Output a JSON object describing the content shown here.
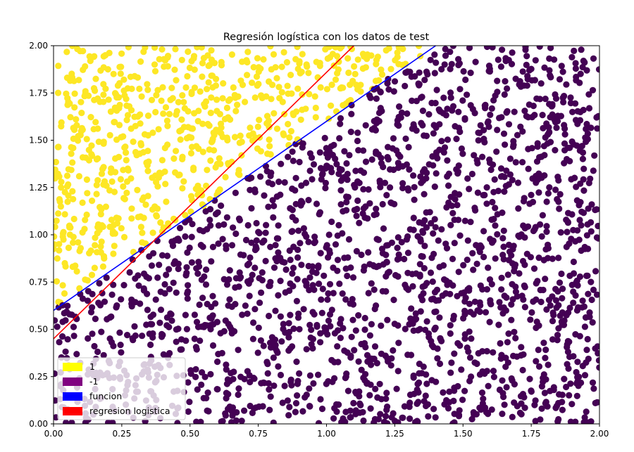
{
  "chart_data": {
    "type": "scatter",
    "title": "Regresión logística con los datos de test",
    "xlabel": "",
    "ylabel": "",
    "xlim": [
      0,
      2
    ],
    "ylim": [
      0,
      2
    ],
    "x_ticks": [
      "0.00",
      "0.25",
      "0.50",
      "0.75",
      "1.00",
      "1.25",
      "1.50",
      "1.75",
      "2.00"
    ],
    "y_ticks": [
      "0.00",
      "0.25",
      "0.50",
      "0.75",
      "1.00",
      "1.25",
      "1.50",
      "1.75",
      "2.00"
    ],
    "grid": false,
    "legend_position": "lower-left",
    "points": {
      "description_count": 2600,
      "x_range": [
        0,
        2
      ],
      "y_range": [
        0,
        2
      ],
      "class_rule": "label 1 when y > 0.6 + x",
      "marker": "circle"
    },
    "series": [
      {
        "name": "1",
        "kind": "scatter",
        "color": "#fde725",
        "legend_color": "#ffff00"
      },
      {
        "name": "-1",
        "kind": "scatter",
        "color": "#440154",
        "legend_color": "#800080"
      },
      {
        "name": "funcion",
        "kind": "line",
        "color": "#0000ff",
        "x": [
          0,
          1.4
        ],
        "y": [
          0.6,
          2.0
        ]
      },
      {
        "name": "regresion logistica",
        "kind": "line",
        "color": "#ff0000",
        "x": [
          0,
          1.1
        ],
        "y": [
          0.45,
          2.0
        ]
      }
    ]
  }
}
